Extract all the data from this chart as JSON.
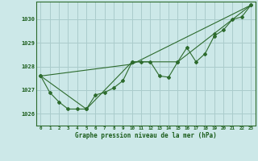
{
  "title": "Graphe pression niveau de la mer (hPa)",
  "bg_color": "#cce8e8",
  "grid_color": "#aacccc",
  "line_color": "#2d6b2d",
  "marker_color": "#2d6b2d",
  "xlim": [
    -0.5,
    23.5
  ],
  "ylim": [
    1025.5,
    1030.75
  ],
  "yticks": [
    1026,
    1027,
    1028,
    1029,
    1030
  ],
  "xticks": [
    0,
    1,
    2,
    3,
    4,
    5,
    6,
    7,
    8,
    9,
    10,
    11,
    12,
    13,
    14,
    15,
    16,
    17,
    18,
    19,
    20,
    21,
    22,
    23
  ],
  "series1": [
    1027.6,
    1026.9,
    1026.5,
    1026.2,
    1026.2,
    1026.2,
    1026.8,
    1026.9,
    1027.1,
    1027.4,
    1028.2,
    1028.2,
    1028.2,
    1027.6,
    1027.55,
    1028.2,
    1028.8,
    1028.2,
    1028.55,
    1029.3,
    1029.55,
    1030.0,
    1030.1,
    1030.6
  ],
  "series2_x": [
    0,
    5,
    10,
    15,
    19,
    23
  ],
  "series2_y": [
    1027.6,
    1026.2,
    1028.2,
    1028.2,
    1029.4,
    1030.6
  ],
  "series3_x": [
    0,
    10,
    23
  ],
  "series3_y": [
    1027.6,
    1028.1,
    1030.6
  ]
}
